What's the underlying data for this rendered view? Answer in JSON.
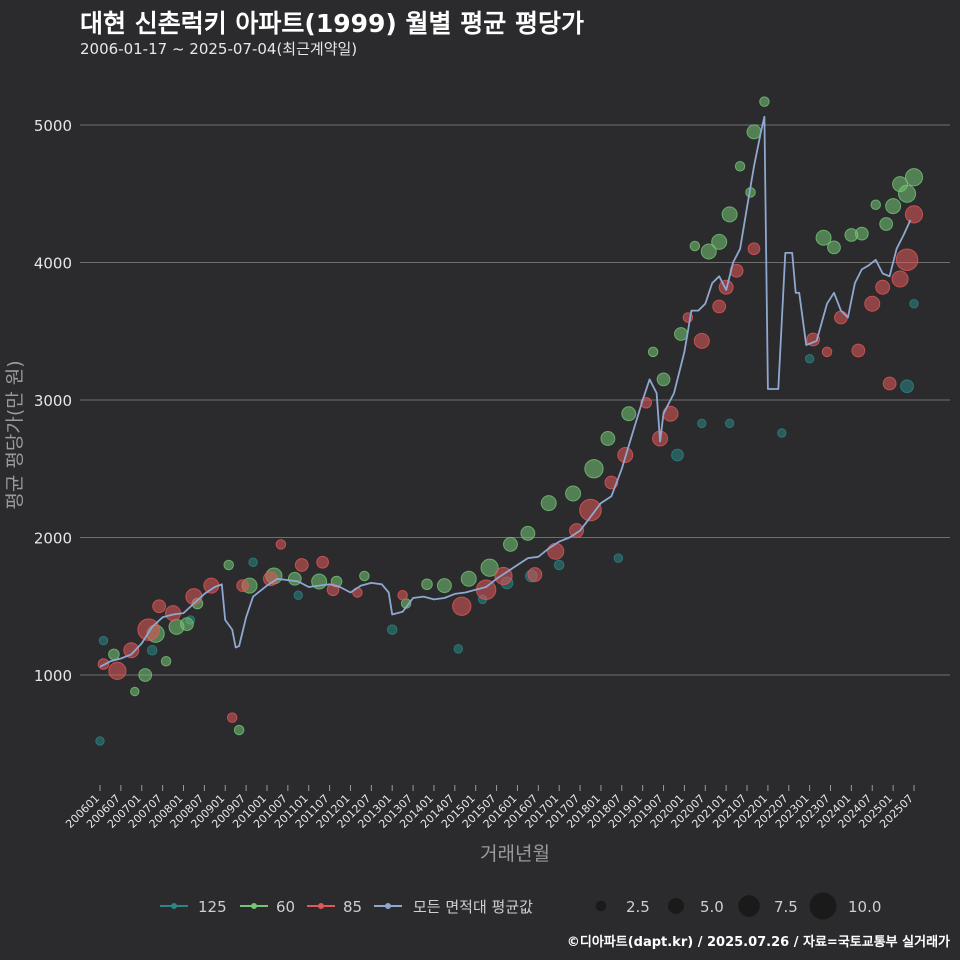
{
  "title": "대현 신촌럭키 아파트(1999) 월별 평균 평당가",
  "subtitle": "2006-01-17 ~ 2025-07-04(최근계약일)",
  "credit": "©디아파트(dapt.kr) / 2025.07.26 / 자료=국토교통부 실거래가",
  "colors": {
    "background": "#2b2a2c",
    "grid": "#6f6f6f",
    "s125": "#2a8585",
    "s60": "#74c476",
    "s85": "#e0575a",
    "avg": "#8fa8d0"
  },
  "chart_data": {
    "type": "scatter",
    "xlabel": "거래년월",
    "ylabel": "평균 평당가(만 원)",
    "ylim": [
      200,
      5400
    ],
    "yticks": [
      1000,
      2000,
      3000,
      4000,
      5000
    ],
    "xrange_months": [
      "2006-01",
      "2025-07"
    ],
    "xtick_labels": [
      "200601",
      "200607",
      "200701",
      "200707",
      "200801",
      "200807",
      "200901",
      "200907",
      "201001",
      "201007",
      "201101",
      "201107",
      "201201",
      "201207",
      "201301",
      "201307",
      "201401",
      "201407",
      "201501",
      "201507",
      "201601",
      "201607",
      "201701",
      "201707",
      "201801",
      "201807",
      "201901",
      "201907",
      "202001",
      "202007",
      "202101",
      "202107",
      "202201",
      "202207",
      "202301",
      "202307",
      "202401",
      "202407",
      "202501",
      "202507"
    ],
    "legend_series": [
      {
        "key": "s125",
        "label": "125"
      },
      {
        "key": "s60",
        "label": "60"
      },
      {
        "key": "s85",
        "label": "85"
      },
      {
        "key": "avg",
        "label": "모든 면적대 평균값"
      }
    ],
    "size_legend": {
      "values": [
        2.5,
        5.0,
        7.5,
        10.0
      ],
      "labels": [
        "2.5",
        "5.0",
        "7.5",
        "10.0"
      ]
    },
    "average_line": [
      [
        "2006-01",
        1060
      ],
      [
        "2006-04",
        1100
      ],
      [
        "2006-07",
        1120
      ],
      [
        "2006-10",
        1150
      ],
      [
        "2007-01",
        1230
      ],
      [
        "2007-04",
        1350
      ],
      [
        "2007-07",
        1420
      ],
      [
        "2007-10",
        1440
      ],
      [
        "2008-01",
        1450
      ],
      [
        "2008-04",
        1520
      ],
      [
        "2008-07",
        1590
      ],
      [
        "2008-10",
        1640
      ],
      [
        "2008-12",
        1660
      ],
      [
        "2009-01",
        1400
      ],
      [
        "2009-03",
        1330
      ],
      [
        "2009-04",
        1200
      ],
      [
        "2009-05",
        1210
      ],
      [
        "2009-07",
        1420
      ],
      [
        "2009-09",
        1570
      ],
      [
        "2010-01",
        1650
      ],
      [
        "2010-04",
        1700
      ],
      [
        "2010-07",
        1690
      ],
      [
        "2010-10",
        1680
      ],
      [
        "2011-01",
        1640
      ],
      [
        "2011-04",
        1650
      ],
      [
        "2011-07",
        1660
      ],
      [
        "2011-10",
        1640
      ],
      [
        "2012-01",
        1600
      ],
      [
        "2012-04",
        1650
      ],
      [
        "2012-07",
        1670
      ],
      [
        "2012-10",
        1660
      ],
      [
        "2012-12",
        1600
      ],
      [
        "2013-01",
        1440
      ],
      [
        "2013-04",
        1460
      ],
      [
        "2013-07",
        1560
      ],
      [
        "2013-10",
        1570
      ],
      [
        "2014-01",
        1550
      ],
      [
        "2014-04",
        1560
      ],
      [
        "2014-07",
        1590
      ],
      [
        "2014-10",
        1600
      ],
      [
        "2015-01",
        1620
      ],
      [
        "2015-04",
        1640
      ],
      [
        "2015-07",
        1700
      ],
      [
        "2015-10",
        1750
      ],
      [
        "2016-01",
        1800
      ],
      [
        "2016-04",
        1850
      ],
      [
        "2016-07",
        1860
      ],
      [
        "2016-10",
        1920
      ],
      [
        "2017-01",
        1970
      ],
      [
        "2017-04",
        2000
      ],
      [
        "2017-07",
        2050
      ],
      [
        "2017-10",
        2150
      ],
      [
        "2018-01",
        2250
      ],
      [
        "2018-04",
        2300
      ],
      [
        "2018-07",
        2500
      ],
      [
        "2018-10",
        2750
      ],
      [
        "2019-01",
        3000
      ],
      [
        "2019-03",
        3150
      ],
      [
        "2019-05",
        3050
      ],
      [
        "2019-06",
        2700
      ],
      [
        "2019-07",
        2900
      ],
      [
        "2019-10",
        3050
      ],
      [
        "2020-01",
        3350
      ],
      [
        "2020-03",
        3650
      ],
      [
        "2020-05",
        3650
      ],
      [
        "2020-07",
        3700
      ],
      [
        "2020-09",
        3850
      ],
      [
        "2020-11",
        3900
      ],
      [
        "2021-01",
        3800
      ],
      [
        "2021-03",
        4000
      ],
      [
        "2021-05",
        4100
      ],
      [
        "2021-07",
        4400
      ],
      [
        "2021-09",
        4700
      ],
      [
        "2021-11",
        4950
      ],
      [
        "2021-12",
        5060
      ],
      [
        "2022-01",
        3080
      ],
      [
        "2022-04",
        3080
      ],
      [
        "2022-06",
        4070
      ],
      [
        "2022-08",
        4070
      ],
      [
        "2022-09",
        3780
      ],
      [
        "2022-10",
        3780
      ],
      [
        "2022-12",
        3400
      ],
      [
        "2023-03",
        3430
      ],
      [
        "2023-06",
        3700
      ],
      [
        "2023-08",
        3780
      ],
      [
        "2023-10",
        3650
      ],
      [
        "2023-12",
        3600
      ],
      [
        "2024-02",
        3850
      ],
      [
        "2024-04",
        3950
      ],
      [
        "2024-06",
        3980
      ],
      [
        "2024-08",
        4020
      ],
      [
        "2024-10",
        3920
      ],
      [
        "2024-12",
        3900
      ],
      [
        "2025-02",
        4100
      ],
      [
        "2025-04",
        4200
      ],
      [
        "2025-06",
        4310
      ]
    ],
    "points": [
      [
        "s125",
        "2006-01",
        520,
        2.0
      ],
      [
        "s125",
        "2006-02",
        1250,
        2.0
      ],
      [
        "s125",
        "2007-04",
        1180,
        2.5
      ],
      [
        "s125",
        "2008-03",
        1400,
        2.0
      ],
      [
        "s125",
        "2009-09",
        1820,
        2.0
      ],
      [
        "s125",
        "2010-10",
        1580,
        2.0
      ],
      [
        "s125",
        "2013-01",
        1330,
        2.5
      ],
      [
        "s125",
        "2014-08",
        1190,
        2.0
      ],
      [
        "s125",
        "2015-03",
        1550,
        2.0
      ],
      [
        "s125",
        "2015-10",
        1670,
        3.5
      ],
      [
        "s125",
        "2016-05",
        1720,
        3.5
      ],
      [
        "s125",
        "2017-01",
        1800,
        2.5
      ],
      [
        "s125",
        "2018-06",
        1850,
        2.0
      ],
      [
        "s125",
        "2019-11",
        2600,
        3.5
      ],
      [
        "s125",
        "2020-06",
        2830,
        2.0
      ],
      [
        "s125",
        "2021-02",
        2830,
        2.0
      ],
      [
        "s125",
        "2022-05",
        2760,
        2.0
      ],
      [
        "s125",
        "2023-01",
        3300,
        2.0
      ],
      [
        "s125",
        "2025-05",
        3100,
        4.0
      ],
      [
        "s125",
        "2025-07",
        3700,
        2.0
      ],
      [
        "s60",
        "2006-05",
        1150,
        3.0
      ],
      [
        "s60",
        "2006-11",
        880,
        2.0
      ],
      [
        "s60",
        "2007-02",
        1000,
        4.0
      ],
      [
        "s60",
        "2007-05",
        1300,
        6.0
      ],
      [
        "s60",
        "2007-08",
        1100,
        2.5
      ],
      [
        "s60",
        "2007-11",
        1350,
        5.0
      ],
      [
        "s60",
        "2008-02",
        1370,
        4.0
      ],
      [
        "s60",
        "2008-05",
        1520,
        3.0
      ],
      [
        "s60",
        "2009-02",
        1800,
        2.5
      ],
      [
        "s60",
        "2009-05",
        600,
        2.5
      ],
      [
        "s60",
        "2009-08",
        1650,
        5.0
      ],
      [
        "s60",
        "2010-03",
        1720,
        5.5
      ],
      [
        "s60",
        "2010-09",
        1700,
        4.0
      ],
      [
        "s60",
        "2011-04",
        1680,
        5.0
      ],
      [
        "s60",
        "2011-09",
        1680,
        3.0
      ],
      [
        "s60",
        "2012-05",
        1720,
        2.5
      ],
      [
        "s60",
        "2013-05",
        1520,
        2.5
      ],
      [
        "s60",
        "2013-11",
        1660,
        3.0
      ],
      [
        "s60",
        "2014-04",
        1650,
        4.5
      ],
      [
        "s60",
        "2014-11",
        1700,
        5.0
      ],
      [
        "s60",
        "2015-05",
        1780,
        6.0
      ],
      [
        "s60",
        "2015-11",
        1950,
        4.5
      ],
      [
        "s60",
        "2016-04",
        2030,
        4.5
      ],
      [
        "s60",
        "2016-10",
        2250,
        5.0
      ],
      [
        "s60",
        "2017-05",
        2320,
        5.0
      ],
      [
        "s60",
        "2017-11",
        2500,
        6.5
      ],
      [
        "s60",
        "2018-03",
        2720,
        4.5
      ],
      [
        "s60",
        "2018-09",
        2900,
        4.5
      ],
      [
        "s60",
        "2019-04",
        3350,
        2.5
      ],
      [
        "s60",
        "2019-07",
        3150,
        4.0
      ],
      [
        "s60",
        "2019-12",
        3480,
        4.0
      ],
      [
        "s60",
        "2020-04",
        4120,
        2.5
      ],
      [
        "s60",
        "2020-08",
        4080,
        5.0
      ],
      [
        "s60",
        "2020-11",
        4150,
        5.0
      ],
      [
        "s60",
        "2021-02",
        4350,
        5.0
      ],
      [
        "s60",
        "2021-05",
        4700,
        2.5
      ],
      [
        "s60",
        "2021-08",
        4510,
        2.5
      ],
      [
        "s60",
        "2021-09",
        4950,
        4.5
      ],
      [
        "s60",
        "2021-12",
        5170,
        2.5
      ],
      [
        "s60",
        "2023-05",
        4180,
        5.0
      ],
      [
        "s60",
        "2023-08",
        4110,
        4.0
      ],
      [
        "s60",
        "2024-01",
        4200,
        4.0
      ],
      [
        "s60",
        "2024-04",
        4210,
        4.0
      ],
      [
        "s60",
        "2024-08",
        4420,
        2.5
      ],
      [
        "s60",
        "2024-11",
        4280,
        4.0
      ],
      [
        "s60",
        "2025-01",
        4410,
        5.0
      ],
      [
        "s60",
        "2025-03",
        4570,
        5.0
      ],
      [
        "s60",
        "2025-05",
        4500,
        6.0
      ],
      [
        "s60",
        "2025-07",
        4620,
        6.0
      ],
      [
        "s85",
        "2006-02",
        1080,
        3.0
      ],
      [
        "s85",
        "2006-06",
        1030,
        6.0
      ],
      [
        "s85",
        "2006-10",
        1180,
        5.0
      ],
      [
        "s85",
        "2007-03",
        1330,
        8.0
      ],
      [
        "s85",
        "2007-06",
        1500,
        4.0
      ],
      [
        "s85",
        "2007-10",
        1450,
        5.0
      ],
      [
        "s85",
        "2008-04",
        1570,
        5.5
      ],
      [
        "s85",
        "2008-09",
        1650,
        5.0
      ],
      [
        "s85",
        "2009-03",
        690,
        2.5
      ],
      [
        "s85",
        "2009-06",
        1650,
        3.5
      ],
      [
        "s85",
        "2010-02",
        1700,
        4.5
      ],
      [
        "s85",
        "2010-05",
        1950,
        2.5
      ],
      [
        "s85",
        "2010-11",
        1800,
        4.0
      ],
      [
        "s85",
        "2011-05",
        1820,
        3.5
      ],
      [
        "s85",
        "2011-08",
        1620,
        3.5
      ],
      [
        "s85",
        "2012-03",
        1600,
        2.5
      ],
      [
        "s85",
        "2013-04",
        1580,
        2.5
      ],
      [
        "s85",
        "2014-09",
        1500,
        6.5
      ],
      [
        "s85",
        "2015-04",
        1620,
        7.0
      ],
      [
        "s85",
        "2015-09",
        1720,
        6.0
      ],
      [
        "s85",
        "2016-06",
        1730,
        4.5
      ],
      [
        "s85",
        "2016-12",
        1900,
        5.5
      ],
      [
        "s85",
        "2017-06",
        2050,
        4.5
      ],
      [
        "s85",
        "2017-10",
        2200,
        8.0
      ],
      [
        "s85",
        "2018-04",
        2400,
        4.0
      ],
      [
        "s85",
        "2018-08",
        2600,
        5.0
      ],
      [
        "s85",
        "2019-02",
        2980,
        3.0
      ],
      [
        "s85",
        "2019-06",
        2720,
        5.0
      ],
      [
        "s85",
        "2019-09",
        2900,
        5.0
      ],
      [
        "s85",
        "2020-02",
        3600,
        2.5
      ],
      [
        "s85",
        "2020-06",
        3430,
        5.0
      ],
      [
        "s85",
        "2020-11",
        3680,
        4.0
      ],
      [
        "s85",
        "2021-01",
        3820,
        4.5
      ],
      [
        "s85",
        "2021-04",
        3940,
        4.0
      ],
      [
        "s85",
        "2021-09",
        4100,
        3.5
      ],
      [
        "s85",
        "2023-02",
        3440,
        4.0
      ],
      [
        "s85",
        "2023-06",
        3350,
        2.5
      ],
      [
        "s85",
        "2023-10",
        3600,
        4.0
      ],
      [
        "s85",
        "2024-03",
        3360,
        4.0
      ],
      [
        "s85",
        "2024-07",
        3700,
        5.0
      ],
      [
        "s85",
        "2024-10",
        3820,
        4.5
      ],
      [
        "s85",
        "2024-12",
        3120,
        4.0
      ],
      [
        "s85",
        "2025-03",
        3880,
        5.5
      ],
      [
        "s85",
        "2025-05",
        4020,
        8.0
      ],
      [
        "s85",
        "2025-07",
        4350,
        6.0
      ]
    ]
  }
}
